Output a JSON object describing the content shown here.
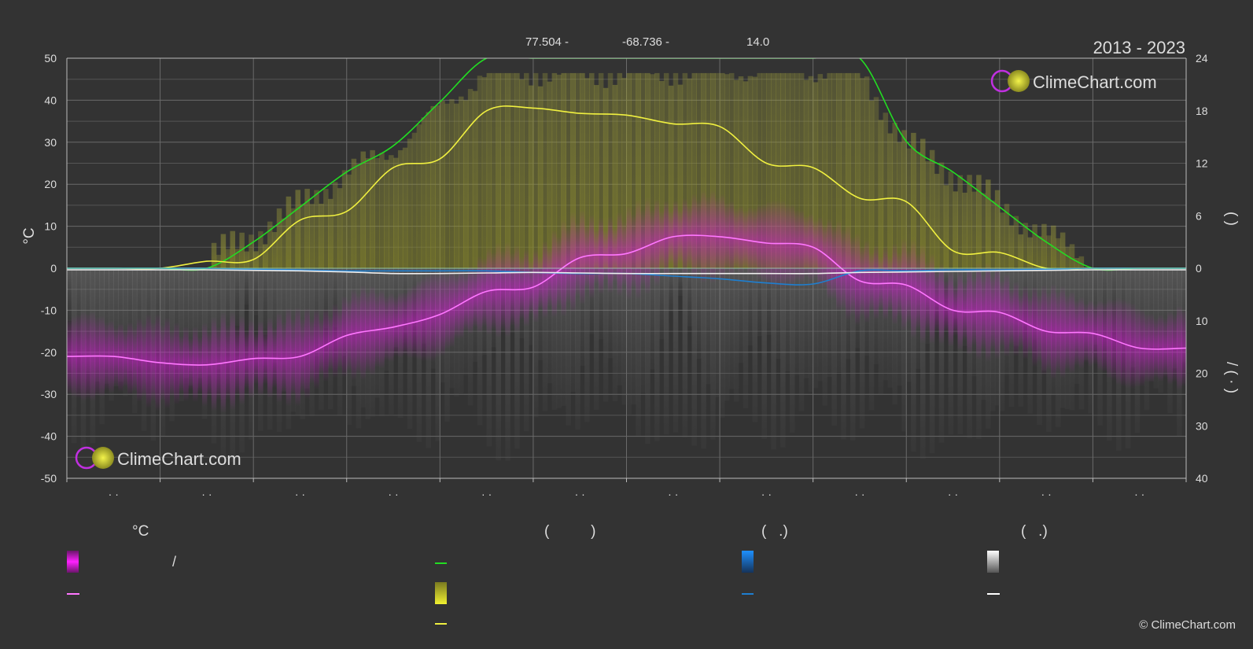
{
  "header": {
    "coords": [
      "77.504 -",
      "-68.736 -",
      "14.0"
    ],
    "years": "2013 - 2023"
  },
  "branding": {
    "logo_text": "ClimeChart.com",
    "copyright": "© ClimeChart.com"
  },
  "axes": {
    "left_unit": "°C",
    "right_upper_label": "(     )",
    "right_lower_label": "/    (  ·  )"
  },
  "legend": {
    "headers": [
      "°C",
      "(          )",
      "(   .)",
      "(   .)"
    ],
    "separator": "/",
    "colors": {
      "temp_range": "#e020e0",
      "temp_mean": "#ff77ff",
      "daylight": "#22dd22",
      "sunshine_range": "#e6e62a",
      "sunshine_mean": "#f0f040",
      "rain_range": "#1e90ff",
      "rain_mean": "#1e7fd0",
      "snow_range": "#dddddd",
      "snow_mean": "#ffffff"
    }
  },
  "chart_data": {
    "type": "line",
    "title": "",
    "xlabel": "",
    "ylabel": "°C",
    "ylim": [
      -50,
      50
    ],
    "y2_upper_lim": [
      0,
      24
    ],
    "y2_lower_lim": [
      0,
      40
    ],
    "grid": true,
    "left_ticks": [
      "50",
      "40",
      "30",
      "20",
      "10",
      "0",
      "-10",
      "-20",
      "-30",
      "-40",
      "-50"
    ],
    "right_upper_ticks": [
      "24",
      "18",
      "12",
      "6",
      "0"
    ],
    "right_lower_ticks": [
      "10",
      "20",
      "30",
      "40"
    ],
    "month_labels": [
      "· ·",
      "· ·",
      "· ·",
      "· ·",
      "· ·",
      "· ·",
      "· ·",
      "· ·",
      "· ·",
      "· ·",
      "· ·",
      "· ·"
    ],
    "x": [
      0,
      0.5,
      1,
      1.5,
      2,
      2.5,
      3,
      3.5,
      4,
      4.5,
      5,
      5.5,
      6,
      6.5,
      7,
      7.5,
      8,
      8.5,
      9,
      9.5,
      10,
      10.5,
      11,
      11.5,
      12
    ],
    "series": [
      {
        "id": "temp_mean",
        "axis": "temperature",
        "values": [
          -21,
          -21,
          -22.5,
          -23,
          -21.5,
          -21,
          -16,
          -14,
          -11,
          -5.5,
          -4.5,
          2.5,
          3.5,
          7.5,
          7.5,
          6,
          5,
          -3,
          -4,
          -10,
          -10.5,
          -15,
          -15.5,
          -19,
          -19
        ]
      },
      {
        "id": "daylight",
        "axis": "hours",
        "values": [
          0,
          0,
          0,
          0,
          3,
          7,
          11,
          14,
          19,
          24,
          24,
          24,
          24,
          24,
          24,
          24,
          24,
          24,
          14.5,
          11,
          7,
          3,
          0,
          0,
          0
        ]
      },
      {
        "id": "sunshine_mean",
        "axis": "hours",
        "values": [
          0,
          0,
          0,
          0.8,
          1,
          5.5,
          6.5,
          11.5,
          12.5,
          18,
          18.3,
          17.7,
          17.5,
          16.5,
          16.2,
          12,
          11.5,
          8,
          7.6,
          2,
          1.8,
          0,
          0,
          0,
          0
        ]
      },
      {
        "id": "rain_mean",
        "axis": "precipitation",
        "values": [
          0,
          0,
          0,
          0,
          0.2,
          0.3,
          0.5,
          0.5,
          0.5,
          0.5,
          0.8,
          1,
          1,
          1.5,
          2,
          2.8,
          3,
          0.5,
          0.5,
          0.3,
          0.3,
          0.2,
          0,
          0,
          0
        ]
      },
      {
        "id": "snow_mean",
        "axis": "precipitation",
        "values": [
          0.3,
          0.3,
          0.3,
          0.3,
          0.4,
          0.5,
          0.7,
          1,
          1,
          0.9,
          0.8,
          0.9,
          1,
          1,
          1,
          1,
          1,
          0.8,
          0.7,
          0.6,
          0.5,
          0.4,
          0.3,
          0.3,
          0.3
        ]
      }
    ]
  }
}
